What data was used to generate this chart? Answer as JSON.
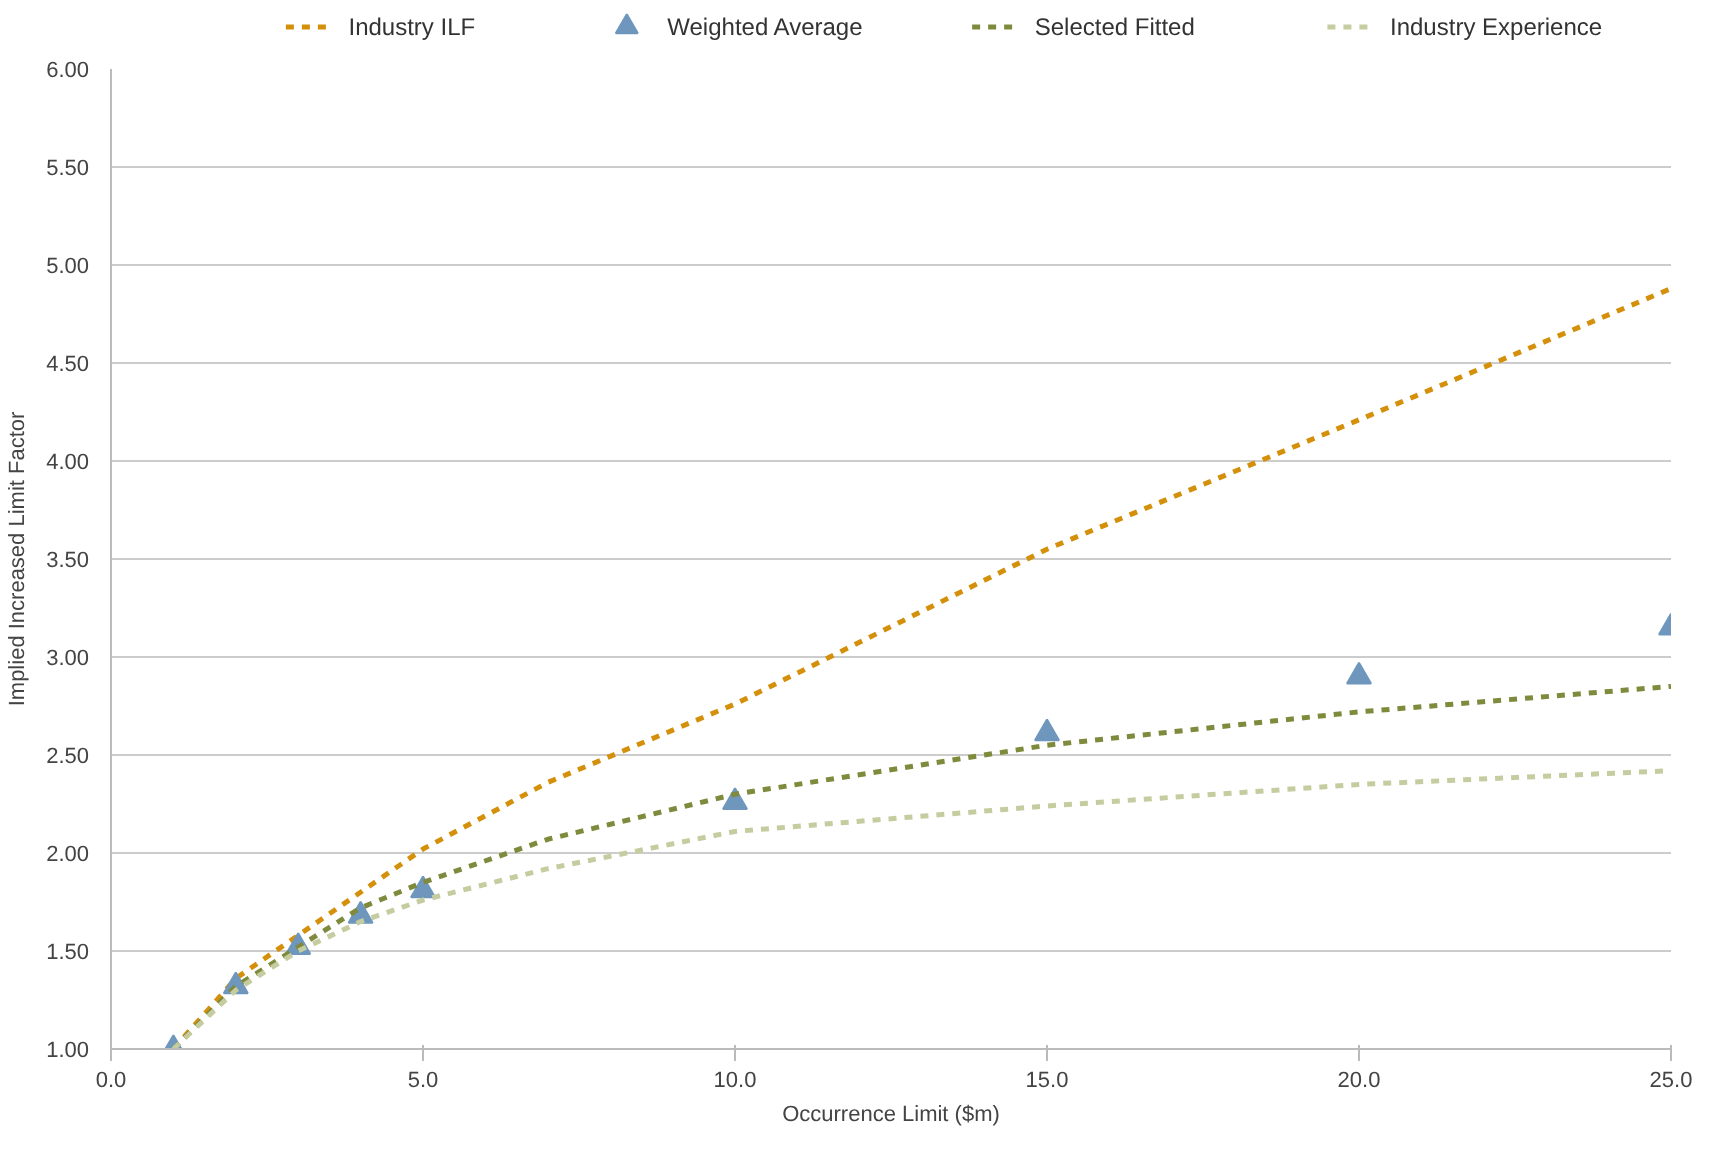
{
  "chart_data": {
    "type": "line",
    "xlabel": "Occurrence Limit ($m)",
    "ylabel": "Implied Increased Limit Factor",
    "xlim": [
      0,
      25
    ],
    "ylim": [
      1,
      6
    ],
    "xticks": [
      {
        "value": 0,
        "label": "0.0"
      },
      {
        "value": 5,
        "label": "5.0"
      },
      {
        "value": 10,
        "label": "10.0"
      },
      {
        "value": 15,
        "label": "15.0"
      },
      {
        "value": 20,
        "label": "20.0"
      },
      {
        "value": 25,
        "label": "25.0"
      }
    ],
    "yticks": [
      {
        "value": 1,
        "label": "1.00"
      },
      {
        "value": 1.5,
        "label": "1.50"
      },
      {
        "value": 2,
        "label": "2.00"
      },
      {
        "value": 2.5,
        "label": "2.50"
      },
      {
        "value": 3,
        "label": "3.00"
      },
      {
        "value": 3.5,
        "label": "3.50"
      },
      {
        "value": 4,
        "label": "4.00"
      },
      {
        "value": 4.5,
        "label": "4.50"
      },
      {
        "value": 5,
        "label": "5.00"
      },
      {
        "value": 5.5,
        "label": "5.50"
      },
      {
        "value": 6,
        "label": "6.00"
      }
    ],
    "grid": "y",
    "legend": "top",
    "line_style": "dashed",
    "series": [
      {
        "name": "Industry ILF",
        "color": "#d4900a",
        "x": [
          1,
          2,
          3,
          4,
          5,
          7,
          10,
          15,
          20,
          25
        ],
        "values": [
          1.0,
          1.36,
          1.58,
          1.8,
          2.02,
          2.36,
          2.76,
          3.55,
          4.21,
          4.88
        ]
      },
      {
        "name": "Weighted Average",
        "type": "scatter",
        "marker": "triangle",
        "color": "#6f97bd",
        "x": [
          1,
          2,
          3,
          4,
          5,
          10,
          15,
          20,
          25
        ],
        "values": [
          1.0,
          1.32,
          1.52,
          1.68,
          1.81,
          2.26,
          2.61,
          2.9,
          3.15
        ]
      },
      {
        "name": "Selected Fitted",
        "color": "#7f8a3c",
        "x": [
          1,
          2,
          3,
          4,
          5,
          7,
          10,
          15,
          20,
          25
        ],
        "values": [
          1.0,
          1.32,
          1.52,
          1.72,
          1.85,
          2.07,
          2.3,
          2.55,
          2.72,
          2.85
        ]
      },
      {
        "name": "Industry Experience",
        "color": "#c5cc9f",
        "x": [
          1,
          2,
          3,
          4,
          5,
          7,
          10,
          15,
          20,
          25
        ],
        "values": [
          1.0,
          1.3,
          1.5,
          1.65,
          1.76,
          1.92,
          2.11,
          2.24,
          2.35,
          2.42
        ]
      }
    ]
  }
}
